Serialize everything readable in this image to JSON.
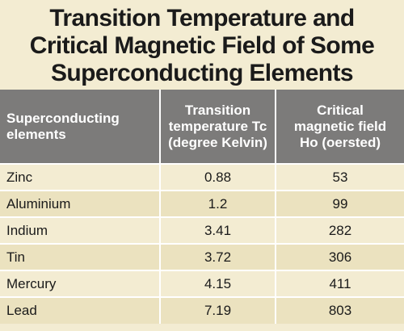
{
  "title": {
    "line1": "Transition Temperature and",
    "line2": "Critical Magnetic Field of Some",
    "line3": "Superconducting Elements"
  },
  "table": {
    "headers": [
      {
        "line1": "Superconducting",
        "line2": "elements",
        "line3": ""
      },
      {
        "line1": "Transition",
        "line2": "temperature Tc",
        "line3": "(degree Kelvin)"
      },
      {
        "line1": "Critical",
        "line2": "magnetic field",
        "line3": "Ho (oersted)"
      }
    ],
    "rows": [
      {
        "element": "Zinc",
        "temperature": "0.88",
        "field": "53"
      },
      {
        "element": "Aluminium",
        "temperature": "1.2",
        "field": "99"
      },
      {
        "element": "Indium",
        "temperature": "3.41",
        "field": "282"
      },
      {
        "element": "Tin",
        "temperature": "3.72",
        "field": "306"
      },
      {
        "element": "Mercury",
        "temperature": "4.15",
        "field": "411"
      },
      {
        "element": "Lead",
        "temperature": "7.19",
        "field": "803"
      }
    ]
  },
  "colors": {
    "background": "#f3ecd2",
    "header_background": "#7c7b7a",
    "alt_row": "#ebe2bf"
  }
}
